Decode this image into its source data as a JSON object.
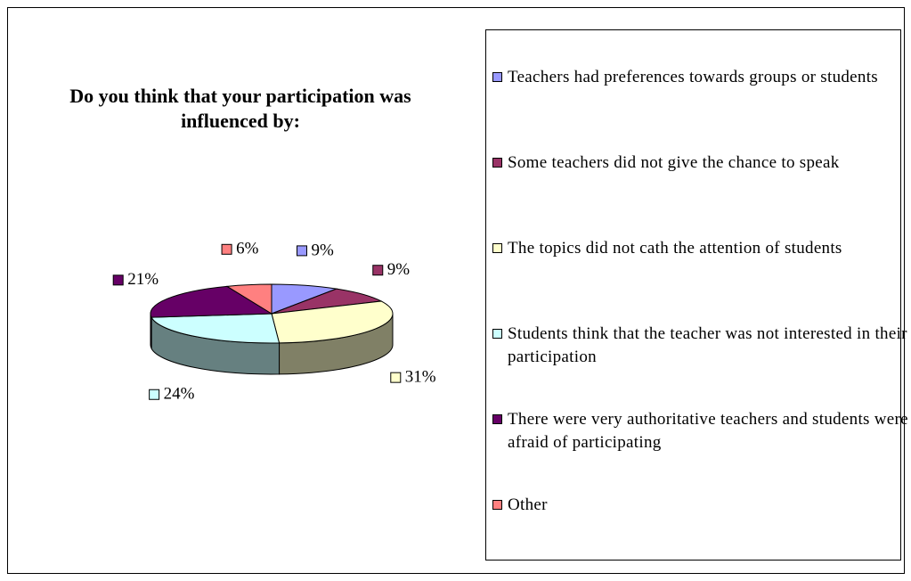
{
  "chart_data": {
    "type": "pie",
    "title": "Do you think that your participation was influenced by:",
    "categories": [
      "Teachers had preferences towards groups or students",
      "Some teachers did not give the chance to speak",
      "The topics did not cath the attention of students",
      "Students think that the teacher was not interested in their participation",
      "There were very authoritative teachers and students were afraid of participating",
      "Other"
    ],
    "values": [
      9,
      9,
      31,
      24,
      21,
      6
    ],
    "value_labels": [
      "9%",
      "9%",
      "31%",
      "24%",
      "21%",
      "6%"
    ],
    "colors": [
      "#9999ff",
      "#993366",
      "#ffffcc",
      "#ccffff",
      "#660066",
      "#ff8080"
    ]
  }
}
